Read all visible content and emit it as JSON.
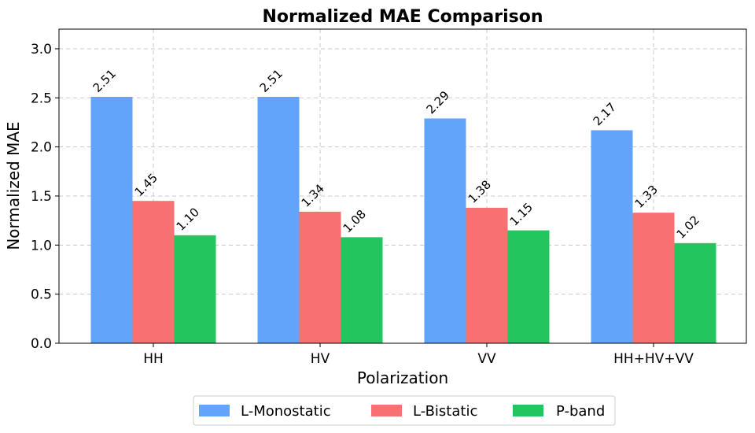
{
  "chart_data": {
    "type": "bar",
    "title": "Normalized MAE Comparison",
    "xlabel": "Polarization",
    "ylabel": "Normalized MAE",
    "categories": [
      "HH",
      "HV",
      "VV",
      "HH+HV+VV"
    ],
    "series": [
      {
        "name": "L-Monostatic",
        "color": "#60a5fa",
        "values": [
          2.51,
          2.51,
          2.29,
          2.17
        ],
        "labels": [
          "2.51",
          "2.51",
          "2.29",
          "2.17"
        ]
      },
      {
        "name": "L-Bistatic",
        "color": "#f87171",
        "values": [
          1.45,
          1.34,
          1.38,
          1.33
        ],
        "labels": [
          "1.45",
          "1.34",
          "1.38",
          "1.33"
        ]
      },
      {
        "name": "P-band",
        "color": "#22c55e",
        "values": [
          1.1,
          1.08,
          1.15,
          1.02
        ],
        "labels": [
          "1.10",
          "1.08",
          "1.15",
          "1.02"
        ]
      }
    ],
    "ylim": [
      0,
      3.2
    ],
    "yticks": [
      0.0,
      0.5,
      1.0,
      1.5,
      2.0,
      2.5,
      3.0
    ],
    "ytick_labels": [
      "0.0",
      "0.5",
      "1.0",
      "1.5",
      "2.0",
      "2.5",
      "3.0"
    ],
    "grid": true,
    "legend_position": "bottom-center"
  }
}
